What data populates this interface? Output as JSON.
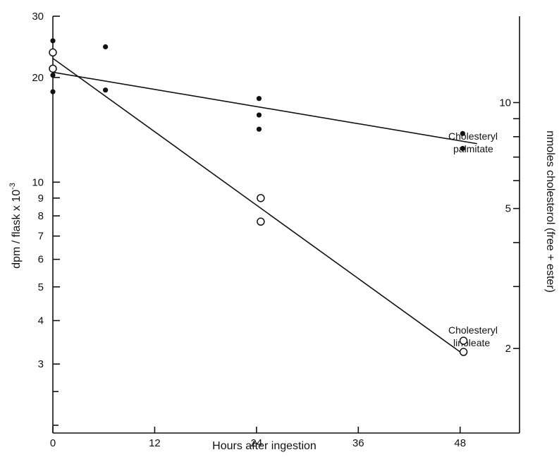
{
  "chart_data": {
    "type": "scatter",
    "xlabel": "Hours after ingestion",
    "ylabel": "dpm / flask x 10",
    "ylabel_superscript": "-3",
    "y2label": "nmoles cholesterol (free + ester)",
    "xlim": [
      0,
      55
    ],
    "ylim": [
      1.9,
      30
    ],
    "yscale": "log",
    "y2lim": [
      1.15,
      17.6
    ],
    "y2scale": "log",
    "grid": false,
    "legend": "none",
    "x_ticks": [
      0,
      12,
      24,
      36,
      48
    ],
    "x_tick_labels": [
      "0",
      "12",
      "24",
      "36",
      "48"
    ],
    "y_ticks": [
      3,
      4,
      5,
      6,
      7,
      8,
      9,
      10,
      20,
      30
    ],
    "y_tick_labels": [
      "3",
      "4",
      "5",
      "6",
      "7",
      "8",
      "9",
      "10",
      "20",
      "30"
    ],
    "y_minor_ticks": [
      2,
      2.5
    ],
    "y2_ticks": [
      2,
      3,
      4,
      5,
      6,
      7,
      8,
      9,
      10
    ],
    "y2_tick_labels": [
      "2",
      "",
      "",
      "5",
      "",
      "",
      "",
      "",
      "10"
    ],
    "series": [
      {
        "name": "Cholesteryl palmitate",
        "marker": "filled-circle",
        "points": [
          [
            0,
            25.5
          ],
          [
            0,
            20.3
          ],
          [
            0,
            18.2
          ],
          [
            6.2,
            24.5
          ],
          [
            6.2,
            18.4
          ],
          [
            24.3,
            17.4
          ],
          [
            24.3,
            15.6
          ],
          [
            24.3,
            14.2
          ],
          [
            48.3,
            13.8
          ],
          [
            48.3,
            12.5
          ]
        ],
        "fit": [
          [
            0,
            20.7
          ],
          [
            50,
            12.9
          ]
        ]
      },
      {
        "name": "Cholesteryl linoleate",
        "marker": "open-circle",
        "points": [
          [
            0,
            23.6
          ],
          [
            0,
            21.2
          ],
          [
            24.5,
            9.0
          ],
          [
            24.5,
            7.7
          ],
          [
            48.4,
            3.5
          ],
          [
            48.4,
            3.25
          ]
        ],
        "fit": [
          [
            0,
            22.7
          ],
          [
            48,
            3.25
          ]
        ]
      }
    ],
    "annotations": [
      {
        "lines": [
          "Cholesteryl",
          "palmitate"
        ],
        "series": 0
      },
      {
        "lines": [
          "Cholesteryl",
          "linoleate"
        ],
        "series": 1
      }
    ]
  }
}
